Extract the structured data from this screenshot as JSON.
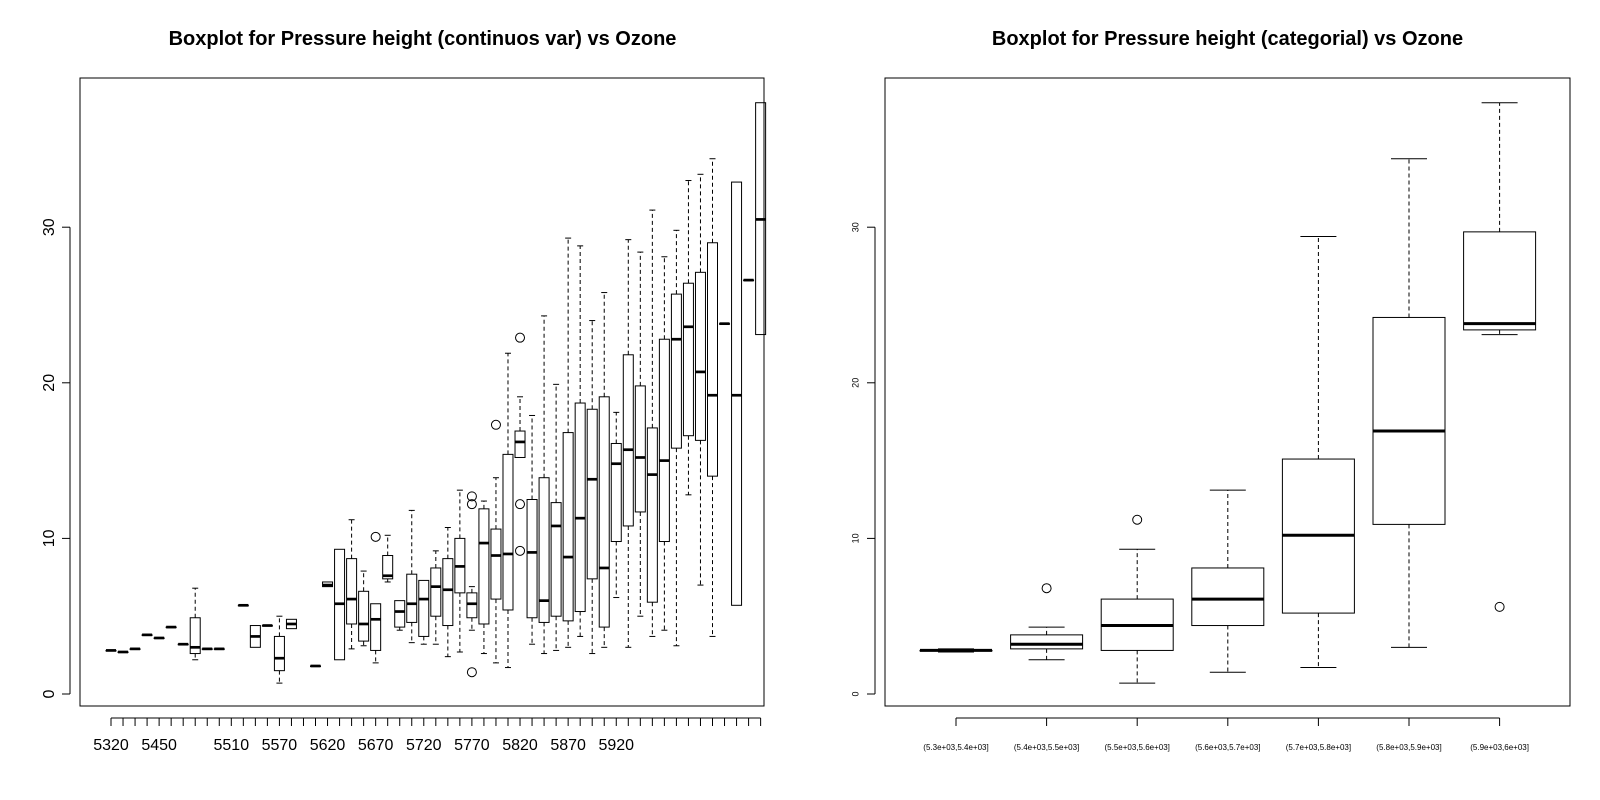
{
  "chart_data": [
    {
      "type": "boxplot",
      "title": "Boxplot for Pressure height (continuos var) vs Ozone",
      "xlabel": "",
      "ylabel": "",
      "ylim": [
        0,
        38
      ],
      "y_ticks": [
        0,
        10,
        20,
        30
      ],
      "x_tick_labels": [
        "5320",
        "5450",
        "5510",
        "5570",
        "5620",
        "5670",
        "5720",
        "5770",
        "5820",
        "5870",
        "5920"
      ],
      "x_tick_label_box_index": [
        0,
        4,
        10,
        14,
        18,
        22,
        26,
        30,
        34,
        38,
        42
      ],
      "boxes": [
        {
          "min": 2.8,
          "q1": 2.8,
          "median": 2.8,
          "q3": 2.8,
          "max": 2.8
        },
        {
          "min": 2.7,
          "q1": 2.7,
          "median": 2.7,
          "q3": 2.7,
          "max": 2.7
        },
        {
          "min": 2.9,
          "q1": 2.9,
          "median": 2.9,
          "q3": 2.9,
          "max": 2.9
        },
        {
          "min": 3.8,
          "q1": 3.8,
          "median": 3.8,
          "q3": 3.8,
          "max": 3.8
        },
        {
          "min": 3.6,
          "q1": 3.6,
          "median": 3.6,
          "q3": 3.6,
          "max": 3.6
        },
        {
          "min": 4.3,
          "q1": 4.3,
          "median": 4.3,
          "q3": 4.3,
          "max": 4.3
        },
        {
          "min": 3.2,
          "q1": 3.2,
          "median": 3.2,
          "q3": 3.2,
          "max": 3.2
        },
        {
          "min": 2.2,
          "q1": 2.6,
          "median": 3.0,
          "q3": 4.9,
          "max": 6.8
        },
        {
          "min": 2.9,
          "q1": 2.9,
          "median": 2.9,
          "q3": 2.9,
          "max": 2.9
        },
        {
          "min": 2.9,
          "q1": 2.9,
          "median": 2.9,
          "q3": 2.9,
          "max": 2.9
        },
        {},
        {
          "min": 5.7,
          "q1": 5.7,
          "median": 5.7,
          "q3": 5.7,
          "max": 5.7
        },
        {
          "min": 3.0,
          "q1": 3.0,
          "median": 3.7,
          "q3": 4.4,
          "max": 4.4
        },
        {
          "min": 4.4,
          "q1": 4.4,
          "median": 4.4,
          "q3": 4.4,
          "max": 4.4
        },
        {
          "min": 0.7,
          "q1": 1.5,
          "median": 2.3,
          "q3": 3.7,
          "max": 5.0
        },
        {
          "min": 4.2,
          "q1": 4.2,
          "median": 4.5,
          "q3": 4.8,
          "max": 4.8
        },
        {},
        {
          "min": 1.8,
          "q1": 1.8,
          "median": 1.8,
          "q3": 1.8,
          "max": 1.8
        },
        {
          "min": 6.9,
          "q1": 6.9,
          "median": 7.0,
          "q3": 7.2,
          "max": 7.2
        },
        {
          "min": 2.2,
          "q1": 2.2,
          "median": 5.8,
          "q3": 9.3,
          "max": 9.3
        },
        {
          "min": 2.9,
          "q1": 4.5,
          "median": 6.1,
          "q3": 8.7,
          "max": 11.2
        },
        {
          "min": 3.1,
          "q1": 3.4,
          "median": 4.5,
          "q3": 6.6,
          "max": 7.9
        },
        {
          "min": 2.0,
          "q1": 2.8,
          "median": 4.8,
          "q3": 5.8,
          "max": 5.8,
          "outliers": [
            10.1
          ]
        },
        {
          "min": 7.2,
          "q1": 7.4,
          "median": 7.6,
          "q3": 8.9,
          "max": 10.2
        },
        {
          "min": 4.1,
          "q1": 4.3,
          "median": 5.3,
          "q3": 6.0,
          "max": 6.0
        },
        {
          "min": 3.3,
          "q1": 4.6,
          "median": 5.8,
          "q3": 7.7,
          "max": 11.8
        },
        {
          "min": 3.2,
          "q1": 3.7,
          "median": 6.1,
          "q3": 7.3,
          "max": 7.3
        },
        {
          "min": 3.2,
          "q1": 5.0,
          "median": 6.9,
          "q3": 8.1,
          "max": 9.2
        },
        {
          "min": 2.4,
          "q1": 4.4,
          "median": 6.7,
          "q3": 8.7,
          "max": 10.7
        },
        {
          "min": 2.7,
          "q1": 6.5,
          "median": 8.2,
          "q3": 10.0,
          "max": 13.1
        },
        {
          "min": 4.1,
          "q1": 4.9,
          "median": 5.8,
          "q3": 6.5,
          "max": 6.9,
          "outliers": [
            12.7,
            12.2,
            1.4
          ]
        },
        {
          "min": 2.6,
          "q1": 4.5,
          "median": 9.7,
          "q3": 11.9,
          "max": 12.4
        },
        {
          "min": 2.0,
          "q1": 6.1,
          "median": 8.9,
          "q3": 10.6,
          "max": 13.9,
          "outliers": [
            17.3
          ]
        },
        {
          "min": 1.7,
          "q1": 5.4,
          "median": 9.0,
          "q3": 15.4,
          "max": 21.9
        },
        {
          "min": 15.2,
          "q1": 15.2,
          "median": 16.2,
          "q3": 16.9,
          "max": 19.1,
          "outliers": [
            22.9,
            12.2,
            9.2
          ]
        },
        {
          "min": 3.2,
          "q1": 4.9,
          "median": 9.1,
          "q3": 12.5,
          "max": 17.9
        },
        {
          "min": 2.6,
          "q1": 4.6,
          "median": 6.0,
          "q3": 13.9,
          "max": 24.3
        },
        {
          "min": 2.8,
          "q1": 5.0,
          "median": 10.8,
          "q3": 12.3,
          "max": 19.9
        },
        {
          "min": 3.0,
          "q1": 4.7,
          "median": 8.8,
          "q3": 16.8,
          "max": 29.3
        },
        {
          "min": 3.7,
          "q1": 5.3,
          "median": 11.3,
          "q3": 18.7,
          "max": 28.8
        },
        {
          "min": 2.6,
          "q1": 7.4,
          "median": 13.8,
          "q3": 18.3,
          "max": 24.0
        },
        {
          "min": 3.0,
          "q1": 4.3,
          "median": 8.1,
          "q3": 19.1,
          "max": 25.8
        },
        {
          "min": 6.2,
          "q1": 9.8,
          "median": 14.8,
          "q3": 16.1,
          "max": 18.1
        },
        {
          "min": 3.0,
          "q1": 10.8,
          "median": 15.7,
          "q3": 21.8,
          "max": 29.2
        },
        {
          "min": 5.0,
          "q1": 11.7,
          "median": 15.2,
          "q3": 19.8,
          "max": 28.4
        },
        {
          "min": 3.7,
          "q1": 5.9,
          "median": 14.1,
          "q3": 17.1,
          "max": 31.1
        },
        {
          "min": 4.1,
          "q1": 9.8,
          "median": 15.0,
          "q3": 22.8,
          "max": 28.1
        },
        {
          "min": 3.1,
          "q1": 15.8,
          "median": 22.8,
          "q3": 25.7,
          "max": 29.8
        },
        {
          "min": 12.8,
          "q1": 16.6,
          "median": 23.6,
          "q3": 26.4,
          "max": 33.0
        },
        {
          "min": 7.0,
          "q1": 16.3,
          "median": 20.7,
          "q3": 27.1,
          "max": 33.4
        },
        {
          "min": 3.7,
          "q1": 14.0,
          "median": 19.2,
          "q3": 29.0,
          "max": 34.4
        },
        {
          "min": 23.8,
          "q1": 23.8,
          "median": 23.8,
          "q3": 23.8,
          "max": 23.8
        },
        {
          "min": 5.7,
          "q1": 5.7,
          "median": 19.2,
          "q3": 32.9,
          "max": 32.9
        },
        {
          "min": 26.6,
          "q1": 26.6,
          "median": 26.6,
          "q3": 26.6,
          "max": 26.6
        },
        {
          "min": 23.1,
          "q1": 23.1,
          "median": 30.5,
          "q3": 38.0,
          "max": 38.0
        }
      ]
    },
    {
      "type": "boxplot",
      "title": "Boxplot for Pressure height (categorial) vs Ozone",
      "xlabel": "",
      "ylabel": "",
      "ylim": [
        0,
        38
      ],
      "y_ticks": [
        0,
        10,
        20,
        30
      ],
      "categories": [
        "(5.3e+03,5.4e+03]",
        "(5.4e+03,5.5e+03]",
        "(5.5e+03,5.6e+03]",
        "(5.6e+03,5.7e+03]",
        "(5.7e+03,5.8e+03]",
        "(5.8e+03,5.9e+03]",
        "(5.9e+03,6e+03]"
      ],
      "boxes": [
        {
          "min": 2.7,
          "q1": 2.8,
          "median": 2.8,
          "q3": 2.8,
          "max": 2.9
        },
        {
          "min": 2.2,
          "q1": 2.9,
          "median": 3.2,
          "q3": 3.8,
          "max": 4.3,
          "outliers": [
            6.8
          ]
        },
        {
          "min": 0.7,
          "q1": 2.8,
          "median": 4.4,
          "q3": 6.1,
          "max": 9.3,
          "outliers": [
            11.2
          ]
        },
        {
          "min": 1.4,
          "q1": 4.4,
          "median": 6.1,
          "q3": 8.1,
          "max": 13.1
        },
        {
          "min": 1.7,
          "q1": 5.2,
          "median": 10.2,
          "q3": 15.1,
          "max": 29.4
        },
        {
          "min": 3.0,
          "q1": 10.9,
          "median": 16.9,
          "q3": 24.2,
          "max": 34.4
        },
        {
          "min": 23.1,
          "q1": 23.4,
          "median": 23.8,
          "q3": 29.7,
          "max": 38.0,
          "outliers": [
            5.6
          ]
        }
      ]
    }
  ]
}
